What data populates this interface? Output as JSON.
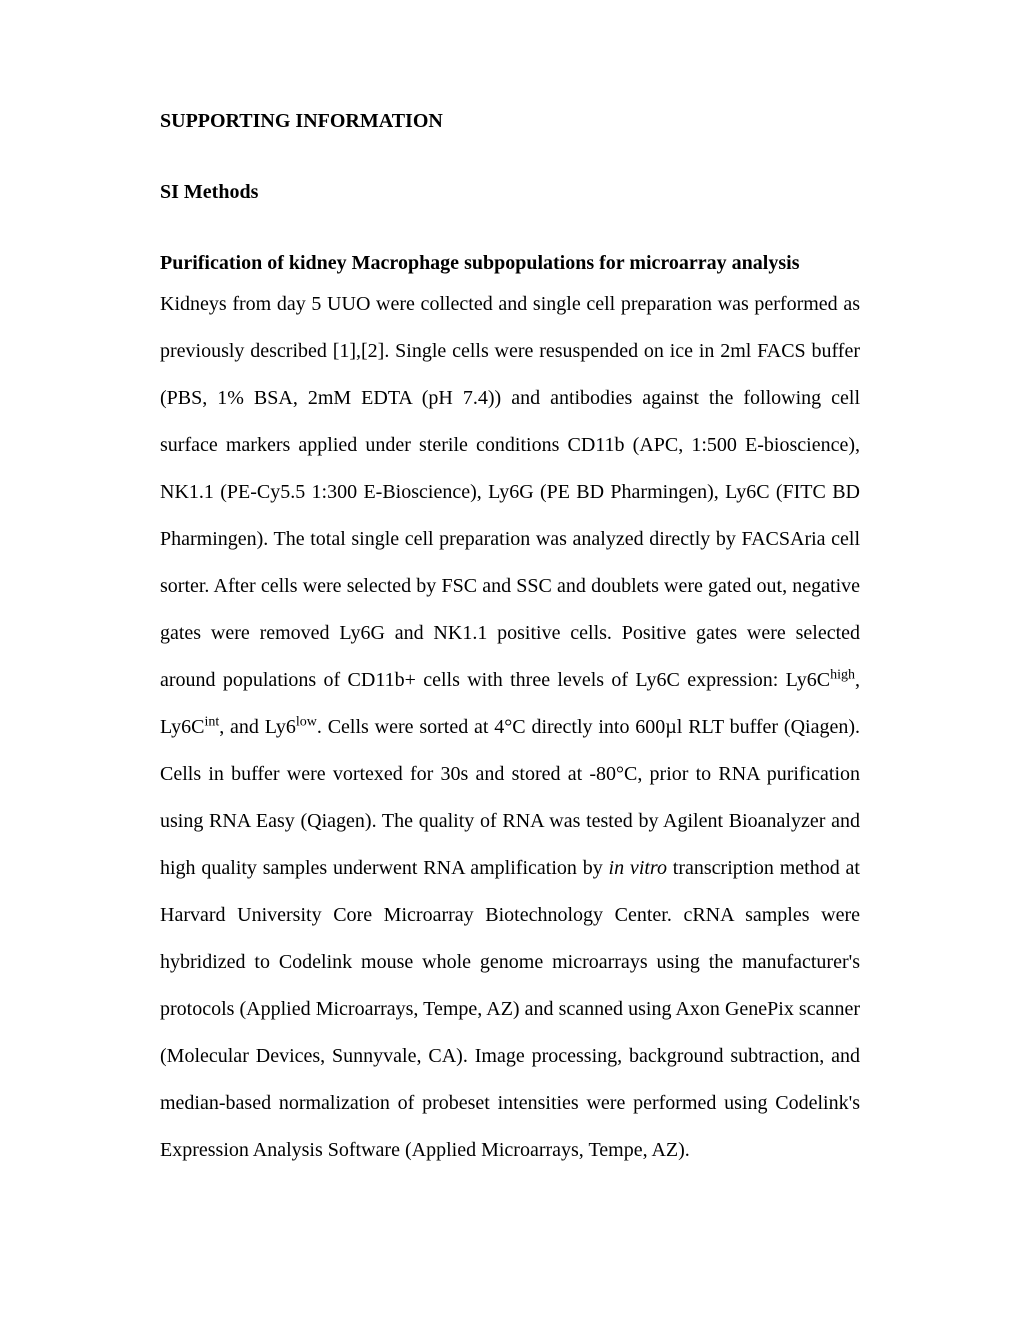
{
  "title": "SUPPORTING INFORMATION",
  "section_heading": "SI Methods",
  "subsection_heading": "Purification of kidney Macrophage subpopulations for microarray analysis",
  "body": {
    "seg1": "Kidneys from day 5 UUO were collected and single cell preparation was performed as previously described [1],[2]. Single cells were resuspended on ice in 2ml FACS buffer (PBS, 1% BSA, 2mM EDTA (pH 7.4)) and antibodies against the following cell surface markers applied under sterile conditions CD11b (APC, 1:500 E-bioscience), NK1.1 (PE-Cy5.5 1:300 E-Bioscience), Ly6G (PE BD Pharmingen), Ly6C (FITC BD Pharmingen). The total single cell preparation was analyzed directly by FACSAria cell sorter. After cells were selected by FSC and SSC and doublets were gated out, negative gates were removed Ly6G and NK1.1 positive cells. Positive gates were selected around populations of CD11b+ cells with three levels of Ly6C expression: Ly6C",
    "sup1": "high",
    "seg2": ", Ly6C",
    "sup2": "int",
    "seg3": ", and Ly6",
    "sup3": "low",
    "seg4": ". Cells were sorted at 4°C directly into 600µl RLT buffer (Qiagen). Cells in buffer were vortexed for 30s and stored at -80°C, prior to RNA purification using RNA Easy (Qiagen).  The quality of RNA was tested by Agilent Bioanalyzer and high quality samples underwent RNA amplification by ",
    "italic1": "in vitro",
    "seg5": " transcription method at Harvard University Core Microarray Biotechnology Center. cRNA samples were hybridized to Codelink mouse whole genome microarrays using the manufacturer's protocols (Applied Microarrays, Tempe, AZ) and scanned using Axon GenePix scanner (Molecular Devices, Sunnyvale, CA). Image processing, background subtraction, and median-based normalization of probeset intensities were performed using Codelink's Expression Analysis Software (Applied Microarrays, Tempe, AZ)."
  }
}
